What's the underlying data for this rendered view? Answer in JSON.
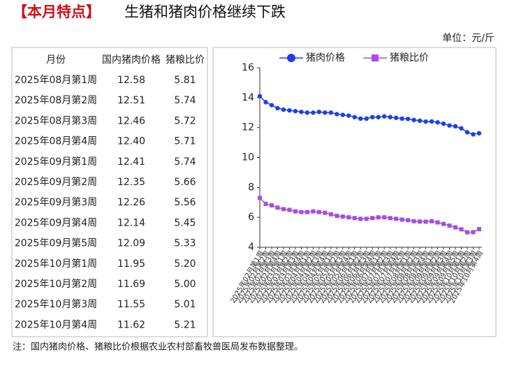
{
  "header": {
    "title_tag": "【本月特点】",
    "title": "生猪和猪肉价格继续下跌",
    "unit": "单位：元/斤"
  },
  "table": {
    "columns": [
      "月份",
      "国内猪肉价格",
      "猪粮比价"
    ],
    "rows": [
      [
        "2025年08月第1周",
        "12.58",
        "5.81"
      ],
      [
        "2025年08月第2周",
        "12.51",
        "5.74"
      ],
      [
        "2025年08月第3周",
        "12.46",
        "5.72"
      ],
      [
        "2025年08月第4周",
        "12.40",
        "5.71"
      ],
      [
        "2025年09月第1周",
        "12.41",
        "5.74"
      ],
      [
        "2025年09月第2周",
        "12.35",
        "5.66"
      ],
      [
        "2025年09月第3周",
        "12.26",
        "5.56"
      ],
      [
        "2025年09月第4周",
        "12.14",
        "5.45"
      ],
      [
        "2025年09月第5周",
        "12.09",
        "5.33"
      ],
      [
        "2025年10月第1周",
        "11.95",
        "5.20"
      ],
      [
        "2025年10月第2周",
        "11.69",
        "5.00"
      ],
      [
        "2025年10月第3周",
        "11.55",
        "5.01"
      ],
      [
        "2025年10月第4周",
        "11.62",
        "5.21"
      ]
    ]
  },
  "chart_data": {
    "type": "line",
    "categories": [
      "2025年02月第1周",
      "2025年02月第2周",
      "2025年02月第3周",
      "2025年02月第4周",
      "2025年03月第1周",
      "2025年03月第2周",
      "2025年03月第3周",
      "2025年03月第4周",
      "2025年04月第1周",
      "2025年04月第2周",
      "2025年04月第3周",
      "2025年04月第4周",
      "2025年05月第1周",
      "2025年05月第2周",
      "2025年05月第3周",
      "2025年05月第4周",
      "2025年06月第1周",
      "2025年06月第2周",
      "2025年06月第3周",
      "2025年06月第4周",
      "2025年07月第1周",
      "2025年07月第2周",
      "2025年07月第3周",
      "2025年07月第4周",
      "2025年07月第5周",
      "2025年08月第1周",
      "2025年08月第2周",
      "2025年08月第3周",
      "2025年08月第4周",
      "2025年09月第1周",
      "2025年09月第2周",
      "2025年09月第3周",
      "2025年09月第4周",
      "2025年09月第5周",
      "2025年10月第1周",
      "2025年10月第2周",
      "2025年10月第3周",
      "2025年10月第4周"
    ],
    "series": [
      {
        "name": "猪肉价格",
        "color": "#1f3fe6",
        "marker": "circle",
        "values": [
          14.1,
          13.7,
          13.5,
          13.3,
          13.2,
          13.15,
          13.1,
          13.05,
          13.0,
          13.0,
          13.05,
          13.0,
          13.0,
          12.9,
          12.85,
          12.8,
          12.7,
          12.6,
          12.6,
          12.7,
          12.7,
          12.75,
          12.7,
          12.65,
          12.6,
          12.58,
          12.51,
          12.46,
          12.4,
          12.41,
          12.35,
          12.26,
          12.14,
          12.09,
          11.95,
          11.69,
          11.55,
          11.62
        ]
      },
      {
        "name": "猪粮比价",
        "color": "#a64ee0",
        "marker": "square",
        "values": [
          7.3,
          6.9,
          6.8,
          6.65,
          6.55,
          6.5,
          6.4,
          6.35,
          6.35,
          6.4,
          6.35,
          6.3,
          6.2,
          6.1,
          6.05,
          6.0,
          5.95,
          5.9,
          5.9,
          5.95,
          6.0,
          6.0,
          5.95,
          5.9,
          5.85,
          5.81,
          5.74,
          5.72,
          5.71,
          5.74,
          5.66,
          5.56,
          5.45,
          5.33,
          5.2,
          5.0,
          5.01,
          5.21
        ]
      }
    ],
    "ylim": [
      4,
      16
    ],
    "yticks": [
      4,
      6,
      8,
      10,
      12,
      14,
      16
    ],
    "legend": "top"
  },
  "note": "注：国内猪肉价格、猪粮比价根据农业农村部畜牧兽医局发布数据整理。"
}
